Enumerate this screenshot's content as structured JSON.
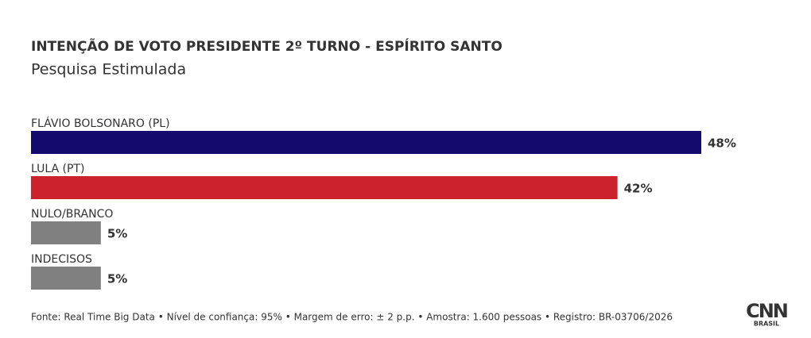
{
  "chart_data": {
    "type": "hbar",
    "title": "INTENÇÃO DE VOTO PRESIDENTE 2º TURNO - ESPÍRITO SANTO",
    "subtitle": "Pesquisa Estimulada",
    "categories": [
      "FLÁVIO BOLSONARO (PL)",
      "LULA (PT)",
      "NULO/BRANCO",
      "INDECISOS"
    ],
    "values": [
      48,
      42,
      5,
      5
    ],
    "value_labels": [
      "48%",
      "42%",
      "5%",
      "5%"
    ],
    "colors": [
      "#140a6e",
      "#cc222b",
      "#808080",
      "#808080"
    ],
    "source": "Fonte: Real Time Big Data • Nível de confiança: 95% • Margem de erro: ± 2 p.p. • Amostra: 1.600 pessoas • Registro: BR-03706/2026",
    "logo": {
      "brand": "CNN",
      "sub": "BRASIL"
    }
  }
}
